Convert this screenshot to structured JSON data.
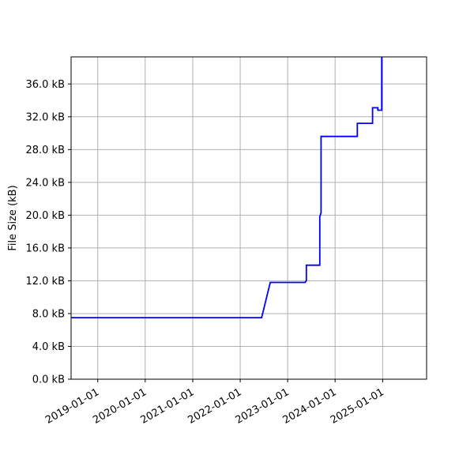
{
  "chart_data": {
    "type": "line",
    "title": "",
    "xlabel": "",
    "ylabel": "File Size (kB)",
    "x_axis_type": "date",
    "xlim": [
      "2018-06-10",
      "2025-12-05"
    ],
    "ylim": [
      0,
      39.3
    ],
    "grid": true,
    "legend": "none",
    "x_ticks": [
      "2019-01-01",
      "2020-01-01",
      "2021-01-01",
      "2022-01-01",
      "2023-01-01",
      "2024-01-01",
      "2025-01-01"
    ],
    "y_ticks": [
      0,
      4,
      8,
      12,
      16,
      20,
      24,
      28,
      32,
      36
    ],
    "y_tick_labels": [
      "0.0 kB",
      "4.0 kB",
      "8.0 kB",
      "12.0 kB",
      "16.0 kB",
      "20.0 kB",
      "24.0 kB",
      "28.0 kB",
      "32.0 kB",
      "36.0 kB"
    ],
    "series": [
      {
        "color": "#0000ff",
        "points": [
          {
            "x": "2018-06-10",
            "y": 7.5
          },
          {
            "x": "2022-06-15",
            "y": 7.5
          },
          {
            "x": "2022-08-20",
            "y": 11.8
          },
          {
            "x": "2023-05-15",
            "y": 11.8
          },
          {
            "x": "2023-05-25",
            "y": 12.0
          },
          {
            "x": "2023-05-25",
            "y": 13.9
          },
          {
            "x": "2023-09-05",
            "y": 13.9
          },
          {
            "x": "2023-09-05",
            "y": 19.8
          },
          {
            "x": "2023-09-15",
            "y": 20.3
          },
          {
            "x": "2023-09-15",
            "y": 29.6
          },
          {
            "x": "2024-06-20",
            "y": 29.6
          },
          {
            "x": "2024-06-20",
            "y": 31.2
          },
          {
            "x": "2024-10-15",
            "y": 31.2
          },
          {
            "x": "2024-10-15",
            "y": 33.1
          },
          {
            "x": "2024-11-25",
            "y": 33.1
          },
          {
            "x": "2024-11-25",
            "y": 32.8
          },
          {
            "x": "2024-12-25",
            "y": 32.8
          },
          {
            "x": "2024-12-25",
            "y": 39.3
          }
        ]
      }
    ]
  }
}
